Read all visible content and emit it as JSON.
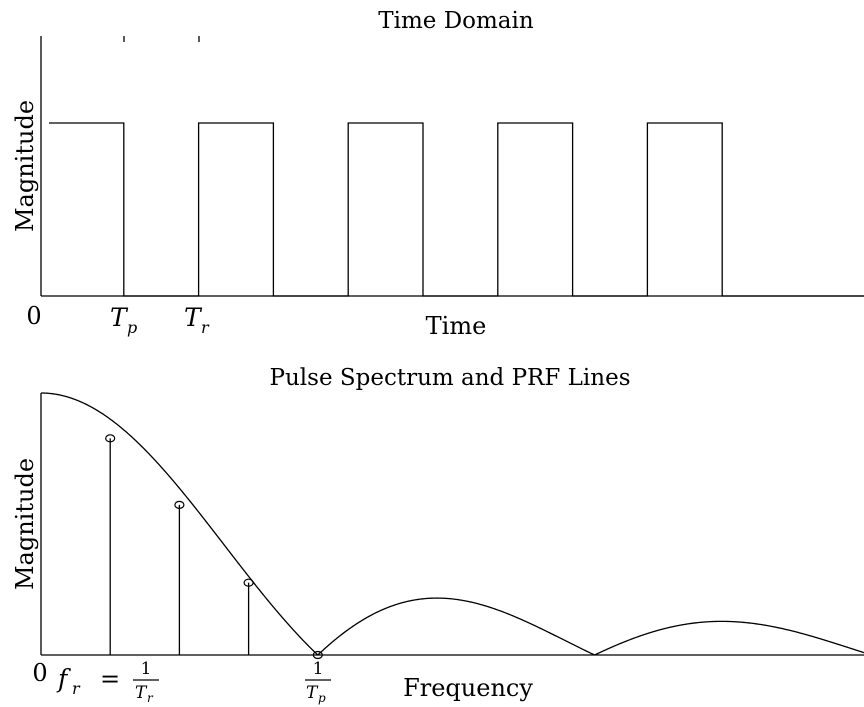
{
  "chart_data": [
    {
      "type": "line",
      "title": "Time Domain",
      "xlabel": "Time",
      "ylabel": "Magnitude",
      "x_ticks": {
        "zero": "0",
        "pulse_width": "T",
        "pulse_width_sub": "p",
        "period": "T",
        "period_sub": "r"
      },
      "ylim": [
        0,
        1.3
      ],
      "series": [
        {
          "x": [
            0,
            1,
            1,
            2,
            2,
            3,
            3,
            4,
            4,
            5,
            5,
            6,
            6,
            7,
            7,
            8,
            8,
            9,
            9,
            11
          ],
          "values": [
            1,
            1,
            0,
            0,
            1,
            1,
            0,
            0,
            1,
            1,
            0,
            0,
            1,
            1,
            0,
            0,
            1,
            1,
            0,
            0
          ]
        }
      ],
      "grid": false
    },
    {
      "type": "line",
      "title": "Pulse Spectrum and PRF Lines",
      "xlabel": "Frequency",
      "ylabel": "Magnitude",
      "x_ticks": {
        "zero": "0",
        "prf_lhs": "f",
        "prf_lhs_sub": "r",
        "prf_eq": "=",
        "one": "1",
        "T": "T",
        "r": "r",
        "p": "p"
      },
      "envelope_formula": "|sinc(f·Tp)|",
      "ylim": [
        0,
        1
      ],
      "prf_lines": [
        {
          "x": 1,
          "value": 0.827
        },
        {
          "x": 2,
          "value": 0.573
        },
        {
          "x": 3,
          "value": 0.276
        },
        {
          "x": 4,
          "value": 0
        }
      ],
      "grid": false
    }
  ]
}
